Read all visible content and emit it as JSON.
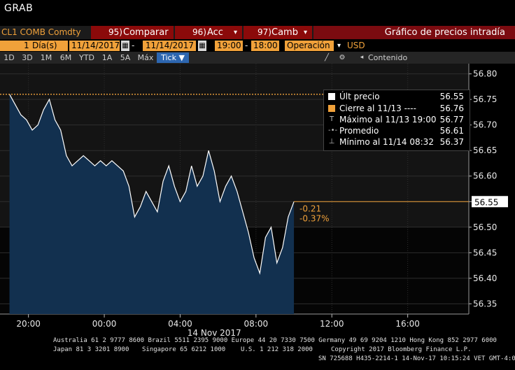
{
  "window": {
    "title": "GRAB"
  },
  "menubar": {
    "ticker": "CL1 COMB Comdty",
    "compare_num": "95)",
    "compare_label": "Comparar",
    "actions_num": "96)",
    "actions_label": "Acc",
    "change_num": "97)",
    "change_label": "Camb",
    "chart_title": "Gráfico de precios intradía"
  },
  "daterow": {
    "period_count": "1",
    "period_unit": "Día(s)",
    "start_date": "11/14/2017",
    "end_date": "11/14/2017",
    "start_time": "19:00",
    "end_time": "18:00",
    "mode": "Operación",
    "currency": "USD"
  },
  "toolbar": {
    "ranges": [
      "1D",
      "3D",
      "1M",
      "6M",
      "YTD",
      "1A",
      "5A",
      "Máx"
    ],
    "selected": "Tick ▼",
    "content_label": "Contenido"
  },
  "legend": {
    "items": [
      {
        "label": "Últ precio",
        "value": "56.55",
        "icon": "white-square"
      },
      {
        "label": "Cierre al 11/13 ----",
        "value": "56.76",
        "icon": "orange-square"
      },
      {
        "label": "Máximo al 11/13 19:00",
        "value": "56.77",
        "icon": "max-marker-icon"
      },
      {
        "label": "Promedio",
        "value": "56.61",
        "icon": "avg-marker-icon"
      },
      {
        "label": "Mínimo al 11/14 08:32",
        "value": "56.37",
        "icon": "min-marker-icon"
      }
    ]
  },
  "colors": {
    "accent": "#f0a13a",
    "menu_red": "#8b0a0a",
    "area_fill": "#12304f",
    "selected": "#2d66b0"
  },
  "chart_data": {
    "type": "area",
    "last_price": 56.55,
    "prev_close": 56.76,
    "high": 56.77,
    "average": 56.61,
    "low": 56.37,
    "change": "-0.21",
    "change_pct": "-0.37%",
    "last_price_label": "56.55",
    "ylim": [
      56.33,
      56.82
    ],
    "yticks": [
      "56.80",
      "56.75",
      "56.70",
      "56.65",
      "56.60",
      "56.55",
      "56.50",
      "56.45",
      "56.40",
      "56.35"
    ],
    "xticks": [
      "20:00",
      "00:00",
      "04:00",
      "08:00",
      "12:00",
      "16:00"
    ],
    "date_label": "14 Nov 2017",
    "x_hours": [
      0,
      0.3,
      0.6,
      0.9,
      1.2,
      1.5,
      1.8,
      2.1,
      2.4,
      2.7,
      3.0,
      3.3,
      3.6,
      3.9,
      4.2,
      4.5,
      4.8,
      5.1,
      5.4,
      5.7,
      6.0,
      6.3,
      6.6,
      6.9,
      7.2,
      7.5,
      7.8,
      8.1,
      8.4,
      8.7,
      9.0,
      9.3,
      9.6,
      9.9,
      10.2,
      10.5,
      10.8,
      11.1,
      11.4,
      11.7,
      12.0,
      12.3,
      12.6,
      12.9,
      13.2,
      13.5,
      13.8,
      14.1,
      14.4,
      14.7,
      15.0
    ],
    "y_values": [
      56.76,
      56.74,
      56.72,
      56.71,
      56.69,
      56.7,
      56.73,
      56.75,
      56.71,
      56.69,
      56.64,
      56.62,
      56.63,
      56.64,
      56.63,
      56.62,
      56.63,
      56.62,
      56.63,
      56.62,
      56.61,
      56.58,
      56.52,
      56.54,
      56.57,
      56.55,
      56.53,
      56.59,
      56.62,
      56.58,
      56.55,
      56.57,
      56.62,
      56.58,
      56.6,
      56.65,
      56.61,
      56.55,
      56.58,
      56.6,
      56.57,
      56.53,
      56.49,
      56.44,
      56.41,
      56.48,
      56.5,
      56.43,
      56.46,
      56.52,
      56.55
    ],
    "start_hour": 19,
    "end_hour": 42
  },
  "footer": {
    "line1": "Australia 61 2 9777 8600 Brazil 5511 2395 9000 Europe 44 20 7330 7500 Germany 49 69 9204 1210 Hong Kong 852 2977 6000",
    "line2a": "Japan 81 3 3201 8900",
    "line2b": "Singapore 65 6212 1000",
    "line2c": "U.S. 1 212 318 2000",
    "line2d": "Copyright 2017 Bloomberg Finance L.P.",
    "line3": "SN 725688 H435-2214-1 14-Nov-17 10:15:24 VET  GMT-4:00"
  }
}
